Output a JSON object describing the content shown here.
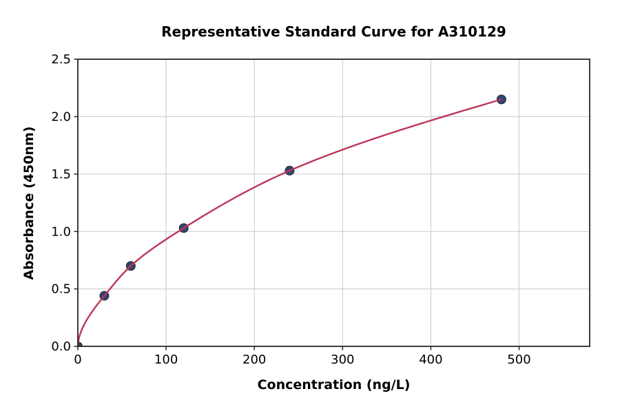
{
  "chart_data": {
    "type": "scatter",
    "title": "Representative Standard Curve for A310129",
    "xlabel": "Concentration (ng/L)",
    "ylabel": "Absorbance (450nm)",
    "xlim": [
      0,
      580
    ],
    "ylim": [
      0,
      2.5
    ],
    "xticks": {
      "values": [
        0,
        100,
        200,
        300,
        400,
        500
      ],
      "labels": [
        "0",
        "100",
        "200",
        "300",
        "400",
        "500"
      ]
    },
    "yticks": {
      "values": [
        0,
        0.5,
        1.0,
        1.5,
        2.0,
        2.5
      ],
      "labels": [
        "0.0",
        "0.5",
        "1.0",
        "1.5",
        "2.0",
        "2.5"
      ]
    },
    "grid": true,
    "legend": "none",
    "points": {
      "x": [
        0,
        30,
        60,
        120,
        240,
        480
      ],
      "y": [
        0,
        0.44,
        0.7,
        1.03,
        1.53,
        2.15
      ]
    },
    "fit_curve": {
      "type": "power",
      "exponent": 0.57,
      "range": [
        0,
        480
      ]
    },
    "colors": {
      "line": "#bd3558",
      "marker_fill": "#34456a",
      "marker_edge": "#26334f",
      "grid": "#c9c9c9",
      "spine": "#262626",
      "text": "#000000",
      "background": "#ffffff"
    }
  }
}
